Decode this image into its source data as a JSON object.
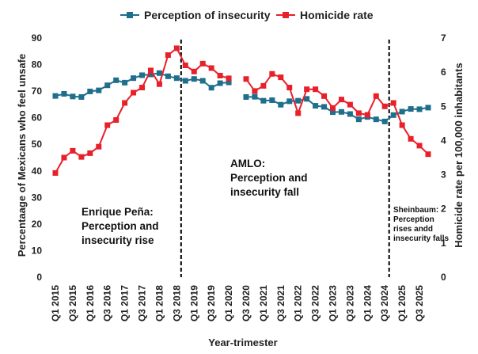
{
  "chart_data": {
    "type": "line",
    "xlabel": "Year-trimester",
    "ylabel_left": "Percentaage of Mexicans who feel unsafe",
    "ylabel_right": "Homicide rate per 100,000 inhabitants",
    "ylim_left": [
      0,
      90
    ],
    "ylim_right": [
      0,
      7
    ],
    "yticks_left": [
      "0",
      "10",
      "20",
      "30",
      "40",
      "50",
      "60",
      "70",
      "80",
      "90"
    ],
    "yticks_right": [
      "0",
      "1",
      "2",
      "3",
      "4",
      "5",
      "6",
      "7"
    ],
    "legend_position": "top",
    "categories": [
      "Q1 2015",
      "Q2 2015",
      "Q3 2015",
      "Q4 2015",
      "Q1 2016",
      "Q2 2016",
      "Q3 2016",
      "Q4 2016",
      "Q1 2017",
      "Q2 2017",
      "Q3 2017",
      "Q4 2017",
      "Q1 2018",
      "Q2 2018",
      "Q3 2018",
      "Q4 2018",
      "Q1 2019",
      "Q2 2019",
      "Q3 2019",
      "Q4 2019",
      "Q1 2020",
      "Q2 2020",
      "Q3 2020",
      "Q4 2020",
      "Q1 2021",
      "Q2 2021",
      "Q3 2021",
      "Q4 2021",
      "Q1 2022",
      "Q2 2022",
      "Q3 2022",
      "Q4 2022",
      "Q1 2023",
      "Q2 2023",
      "Q3 2023",
      "Q4 2023",
      "Q1 2024",
      "Q2 2024",
      "Q3 2024",
      "Q4 2024",
      "Q1 2025",
      "Q2 2025",
      "Q3 2025",
      "Q4 2025"
    ],
    "visible_tick_labels": [
      "Q1 2015",
      "Q3 2015",
      "Q1 2016",
      "Q3 2016",
      "Q1 2017",
      "Q3 2017",
      "Q1 2018",
      "Q3 2018",
      "Q1 2019",
      "Q3 2019",
      "Q1 2020",
      "Q3 2020",
      "Q1 2021",
      "Q3 2021",
      "Q1 2022",
      "Q3 2022",
      "Q1 2023",
      "Q3 2023",
      "Q1 2024",
      "Q3 2024",
      "Q1 2025",
      "Q3 2025"
    ],
    "series": [
      {
        "name": "Perception of insecurity",
        "color": "#1f6e8c",
        "marker": "square",
        "axis": "left",
        "values": [
          68.2,
          69.0,
          68.0,
          67.8,
          69.9,
          70.3,
          72.2,
          74.1,
          73.2,
          74.9,
          76.0,
          76.3,
          76.8,
          75.6,
          74.9,
          73.9,
          74.6,
          73.9,
          71.3,
          73.0,
          73.3,
          null,
          67.8,
          67.9,
          66.4,
          66.6,
          64.9,
          66.2,
          66.4,
          67.1,
          64.5,
          64.1,
          62.1,
          62.2,
          61.4,
          59.4,
          60.3,
          59.4,
          58.6,
          61.0,
          62.3,
          63.3,
          63.2,
          63.8
        ]
      },
      {
        "name": "Homicide rate",
        "color": "#e8202a",
        "marker": "square",
        "axis": "right",
        "values": [
          3.05,
          3.5,
          3.7,
          3.52,
          3.63,
          3.82,
          4.45,
          4.6,
          5.1,
          5.4,
          5.55,
          6.05,
          5.65,
          6.5,
          6.7,
          6.2,
          6.02,
          6.25,
          6.12,
          5.9,
          5.82,
          null,
          5.8,
          5.45,
          5.6,
          5.95,
          5.85,
          5.55,
          4.8,
          5.5,
          5.5,
          5.3,
          4.95,
          5.2,
          5.05,
          4.8,
          4.75,
          5.3,
          5.0,
          5.1,
          4.45,
          4.05,
          3.85,
          3.6
        ]
      }
    ],
    "vlines_after_category": [
      "Q3 2018",
      "Q3 2024"
    ],
    "annotations": [
      {
        "lines": [
          "Enrique Peña:",
          "Perception and",
          "insecurity rise"
        ]
      },
      {
        "lines": [
          "AMLO:",
          "Perception and",
          "insecurity fall"
        ]
      },
      {
        "lines": [
          "Sheinbaum:",
          "Perception",
          "rises andd",
          "insecurity falls"
        ]
      }
    ]
  }
}
